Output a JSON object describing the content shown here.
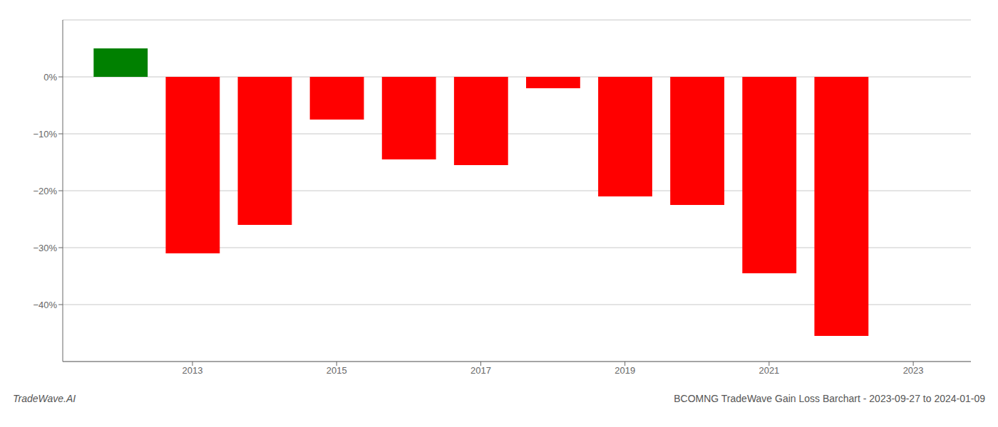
{
  "chart_data": {
    "type": "bar",
    "x": [
      2012,
      2013,
      2014,
      2015,
      2016,
      2017,
      2018,
      2019,
      2020,
      2021,
      2022
    ],
    "values": [
      5.0,
      -31.0,
      -26.0,
      -7.5,
      -14.5,
      -15.5,
      -2.0,
      -21.0,
      -22.5,
      -34.5,
      -45.5
    ],
    "colors": [
      "#008000",
      "#ff0000",
      "#ff0000",
      "#ff0000",
      "#ff0000",
      "#ff0000",
      "#ff0000",
      "#ff0000",
      "#ff0000",
      "#ff0000",
      "#ff0000"
    ],
    "xlim": [
      2011.2,
      2023.8
    ],
    "xticks": [
      2013,
      2015,
      2017,
      2019,
      2021,
      2023
    ],
    "ylim": [
      -50,
      10
    ],
    "yticks": [
      {
        "value": 0,
        "label": "0%"
      },
      {
        "value": -10,
        "label": "−10%"
      },
      {
        "value": -20,
        "label": "−20%"
      },
      {
        "value": -30,
        "label": "−30%"
      },
      {
        "value": -40,
        "label": "−40%"
      }
    ],
    "grid": true,
    "annotations": [
      "TradeWave.AI",
      "BCOMNG TradeWave Gain Loss Barchart - 2023-09-27 to 2024-01-09"
    ]
  }
}
